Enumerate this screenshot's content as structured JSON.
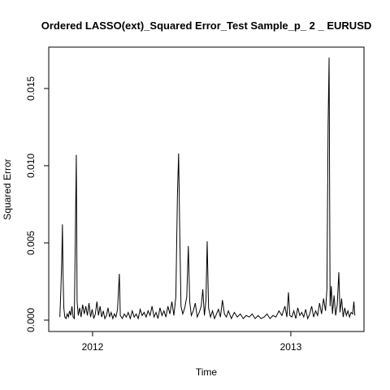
{
  "chart_data": {
    "type": "line",
    "title": "Ordered LASSO(ext)_Squared Error_Test Sample_p_ 2 _ EURUSD",
    "x_label": "Time",
    "y_label": "Squared Error",
    "xlim": [
      2011.779,
      2013.369
    ],
    "ylim": [
      -0.000737,
      0.01768
    ],
    "xticks": [
      2012,
      2013
    ],
    "yticks": [
      {
        "value": 0,
        "label": "0.000"
      },
      {
        "value": 0.005,
        "label": "0.005"
      },
      {
        "value": 0.01,
        "label": "0.010"
      },
      {
        "value": 0.015,
        "label": "0.015"
      }
    ],
    "series": [
      {
        "name": "Squared Error",
        "color": "#000000",
        "x": [
          2011.835,
          2011.84,
          2011.845,
          2011.848,
          2011.851,
          2011.855,
          2011.86,
          2011.866,
          2011.872,
          2011.878,
          2011.884,
          2011.89,
          2011.896,
          2011.902,
          2011.908,
          2011.913,
          2011.918,
          2011.922,
          2011.928,
          2011.935,
          2011.942,
          2011.95,
          2011.958,
          2011.966,
          2011.974,
          2011.982,
          2011.99,
          2011.998,
          2012.006,
          2012.014,
          2012.022,
          2012.03,
          2012.038,
          2012.046,
          2012.054,
          2012.062,
          2012.07,
          2012.078,
          2012.086,
          2012.094,
          2012.102,
          2012.11,
          2012.118,
          2012.126,
          2012.135,
          2012.14,
          2012.15,
          2012.16,
          2012.17,
          2012.18,
          2012.19,
          2012.2,
          2012.21,
          2012.22,
          2012.23,
          2012.24,
          2012.25,
          2012.26,
          2012.27,
          2012.28,
          2012.29,
          2012.3,
          2012.31,
          2012.32,
          2012.33,
          2012.34,
          2012.35,
          2012.36,
          2012.37,
          2012.38,
          2012.39,
          2012.4,
          2012.41,
          2012.42,
          2012.428,
          2012.434,
          2012.44,
          2012.446,
          2012.455,
          2012.465,
          2012.475,
          2012.483,
          2012.49,
          2012.498,
          2012.508,
          2012.518,
          2012.528,
          2012.538,
          2012.548,
          2012.556,
          2012.564,
          2012.572,
          2012.578,
          2012.585,
          2012.595,
          2012.605,
          2012.615,
          2012.625,
          2012.635,
          2012.645,
          2012.655,
          2012.665,
          2012.675,
          2012.685,
          2012.7,
          2012.715,
          2012.73,
          2012.745,
          2012.76,
          2012.775,
          2012.79,
          2012.805,
          2012.82,
          2012.835,
          2012.85,
          2012.865,
          2012.88,
          2012.895,
          2012.91,
          2012.925,
          2012.94,
          2012.955,
          2012.97,
          2012.98,
          2012.988,
          2012.995,
          2013.005,
          2013.015,
          2013.025,
          2013.035,
          2013.045,
          2013.055,
          2013.065,
          2013.075,
          2013.085,
          2013.095,
          2013.105,
          2013.115,
          2013.125,
          2013.135,
          2013.145,
          2013.155,
          2013.165,
          2013.175,
          2013.182,
          2013.188,
          2013.193,
          2013.198,
          2013.204,
          2013.21,
          2013.218,
          2013.226,
          2013.234,
          2013.242,
          2013.248,
          2013.256,
          2013.264,
          2013.272,
          2013.28,
          2013.288,
          2013.296,
          2013.304,
          2013.312,
          2013.318,
          2013.323
        ],
        "values": [
          0.0002,
          0.0019,
          0.0041,
          0.0062,
          0.003,
          0.0008,
          0.0002,
          0.0001,
          0.0004,
          0.0002,
          0.0006,
          0.0003,
          0.0009,
          0.0002,
          0.0001,
          0.0053,
          0.0107,
          0.0012,
          0.0003,
          0.0008,
          0.0002,
          0.001,
          0.0004,
          0.0009,
          0.0003,
          0.0011,
          0.0002,
          0.0007,
          0.0001,
          0.0004,
          0.0012,
          0.0003,
          0.0009,
          0.0002,
          0.0006,
          0.0001,
          0.0003,
          0.0008,
          0.0002,
          0.0005,
          0.0001,
          0.0004,
          0.0002,
          0.0007,
          0.003,
          0.0003,
          0.0001,
          0.0004,
          0.0002,
          0.0005,
          0.0001,
          0.0006,
          0.0002,
          0.0004,
          0.0001,
          0.0007,
          0.0003,
          0.0005,
          0.0002,
          0.0006,
          0.0003,
          0.0009,
          0.0002,
          0.0005,
          0.0001,
          0.0008,
          0.0003,
          0.0006,
          0.0002,
          0.0009,
          0.0004,
          0.0012,
          0.0003,
          0.0015,
          0.0081,
          0.0108,
          0.0055,
          0.0009,
          0.0004,
          0.0008,
          0.0015,
          0.0048,
          0.0012,
          0.0003,
          0.0006,
          0.0011,
          0.0002,
          0.0005,
          0.0009,
          0.002,
          0.0003,
          0.0013,
          0.0051,
          0.0008,
          0.0002,
          0.0006,
          0.0001,
          0.0004,
          0.0007,
          0.0002,
          0.0013,
          0.0004,
          0.0002,
          0.0006,
          0.0001,
          0.0005,
          0.0002,
          0.0004,
          0.0001,
          0.0003,
          0.0002,
          0.0004,
          0.0001,
          0.0003,
          0.0001,
          0.0002,
          0.0004,
          0.0001,
          0.0003,
          0.0002,
          0.0006,
          0.0003,
          0.0009,
          0.0002,
          0.0018,
          0.0003,
          0.0002,
          0.0006,
          0.0001,
          0.0008,
          0.0003,
          0.0005,
          0.0002,
          0.0007,
          0.0001,
          0.0004,
          0.0009,
          0.0002,
          0.0006,
          0.0003,
          0.0011,
          0.0004,
          0.0014,
          0.0006,
          0.002,
          0.0127,
          0.017,
          0.0009,
          0.0022,
          0.0004,
          0.0016,
          0.0003,
          0.001,
          0.0031,
          0.0005,
          0.0014,
          0.0002,
          0.0008,
          0.0003,
          0.0006,
          0.0002,
          0.0005,
          0.0004,
          0.0012,
          0.0003
        ]
      }
    ]
  }
}
